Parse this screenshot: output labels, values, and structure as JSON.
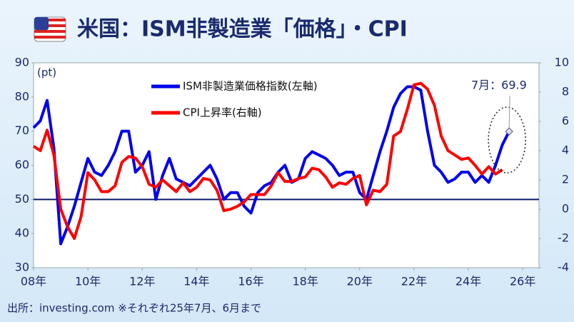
{
  "chart_data": {
    "type": "line",
    "title": "米国：ISM非製造業「価格」・CPI",
    "y_unit_label": "(pt)",
    "annotation": "7月：69.9",
    "source": "出所：investing.com ※それぞれ25年7月、6月まで",
    "x": [
      2008,
      2008.25,
      2008.5,
      2008.75,
      2009,
      2009.25,
      2009.5,
      2009.75,
      2010,
      2010.25,
      2010.5,
      2010.75,
      2011,
      2011.25,
      2011.5,
      2011.75,
      2012,
      2012.25,
      2012.5,
      2012.75,
      2013,
      2013.25,
      2013.5,
      2013.75,
      2014,
      2014.25,
      2014.5,
      2014.75,
      2015,
      2015.25,
      2015.5,
      2015.75,
      2016,
      2016.25,
      2016.5,
      2016.75,
      2017,
      2017.25,
      2017.5,
      2017.75,
      2018,
      2018.25,
      2018.5,
      2018.75,
      2019,
      2019.25,
      2019.5,
      2019.75,
      2020,
      2020.25,
      2020.5,
      2020.75,
      2021,
      2021.25,
      2021.5,
      2021.75,
      2022,
      2022.25,
      2022.5,
      2022.75,
      2023,
      2023.25,
      2023.5,
      2023.75,
      2024,
      2024.25,
      2024.5,
      2024.75,
      2025,
      2025.25,
      2025.5
    ],
    "series": [
      {
        "name": "ISM非製造業価格指数(左軸)",
        "color": "#0000ee",
        "values": [
          71,
          73,
          79,
          65,
          37,
          42,
          48,
          55,
          62,
          58,
          57,
          60,
          64,
          70,
          70,
          58,
          60,
          64,
          50,
          57,
          62,
          56,
          55,
          54,
          56,
          58,
          60,
          56,
          50,
          52,
          52,
          48,
          46,
          52,
          54,
          55,
          58,
          60,
          55,
          56,
          62,
          64,
          63,
          62,
          60,
          57,
          58,
          58,
          52,
          50,
          57,
          64,
          70,
          77,
          81,
          83,
          83,
          82,
          70,
          60,
          58,
          55,
          56,
          58,
          58,
          55,
          57,
          55,
          60,
          66,
          69.9
        ]
      },
      {
        "name": "CPI上昇率(右軸)",
        "color": "#ff0000",
        "axis": "y2",
        "values": [
          4.3,
          4.0,
          5.4,
          3.7,
          0.0,
          -1.2,
          -2.0,
          -0.5,
          2.5,
          2.0,
          1.2,
          1.2,
          1.6,
          3.2,
          3.6,
          3.5,
          2.9,
          1.7,
          1.5,
          2.0,
          1.6,
          1.2,
          1.8,
          1.2,
          1.5,
          2.1,
          2.0,
          1.3,
          -0.1,
          0.0,
          0.2,
          0.5,
          1.0,
          1.0,
          1.0,
          1.6,
          2.5,
          1.9,
          1.9,
          2.1,
          2.2,
          2.8,
          2.7,
          2.2,
          1.5,
          1.8,
          1.7,
          2.1,
          2.3,
          0.3,
          1.3,
          1.2,
          1.7,
          5.0,
          5.3,
          6.8,
          8.5,
          8.6,
          8.2,
          7.1,
          5.0,
          4.0,
          3.7,
          3.4,
          3.5,
          3.0,
          2.4,
          2.9,
          2.4,
          2.7,
          null
        ]
      }
    ],
    "xlim": [
      2008,
      2026.6
    ],
    "xticks": [
      {
        "value": 2008,
        "label": "08年"
      },
      {
        "value": 2010,
        "label": "10年"
      },
      {
        "value": 2012,
        "label": "12年"
      },
      {
        "value": 2014,
        "label": "14年"
      },
      {
        "value": 2016,
        "label": "16年"
      },
      {
        "value": 2018,
        "label": "18年"
      },
      {
        "value": 2020,
        "label": "20年"
      },
      {
        "value": 2022,
        "label": "22年"
      },
      {
        "value": 2024,
        "label": "24年"
      },
      {
        "value": 2026,
        "label": "26年"
      }
    ],
    "ylim": [
      30,
      90
    ],
    "yticks": [
      30,
      40,
      50,
      60,
      70,
      80,
      90
    ],
    "y2lim": [
      -4,
      10
    ],
    "y2ticks": [
      -4,
      -2,
      0,
      2,
      4,
      6,
      8,
      10
    ],
    "reference_line": 50,
    "grid": false
  }
}
